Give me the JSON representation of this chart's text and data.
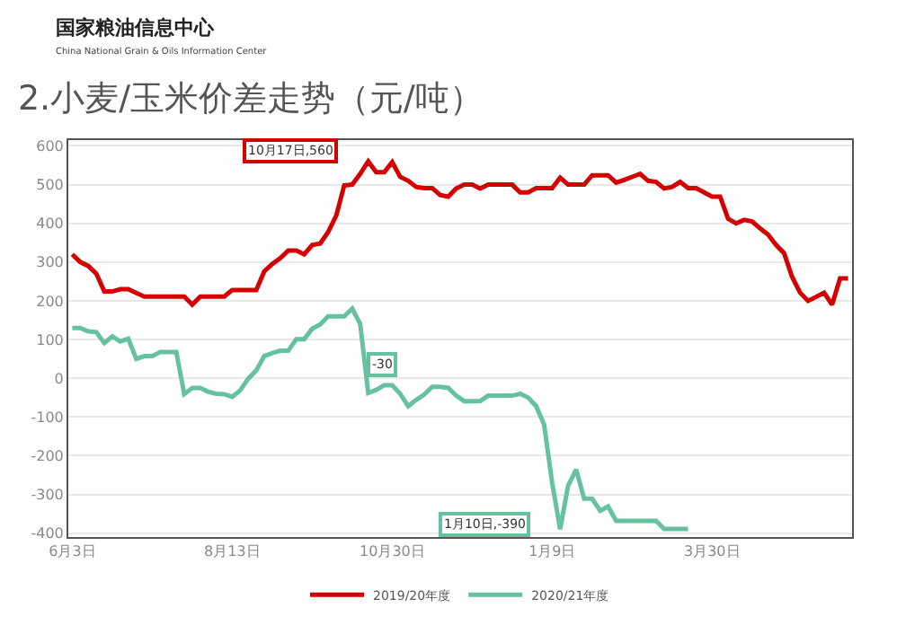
{
  "chart_data": {
    "type": "line",
    "title": "2.小麦/玉米价差走势（元/吨）",
    "categories": [
      "6月3日",
      null,
      null,
      null,
      null,
      null,
      null,
      null,
      null,
      null,
      null,
      null,
      null,
      null,
      null,
      null,
      null,
      null,
      null,
      null,
      "8月13日",
      null,
      null,
      null,
      null,
      null,
      null,
      null,
      null,
      null,
      null,
      null,
      null,
      null,
      null,
      null,
      null,
      null,
      null,
      null,
      "10月30日",
      null,
      null,
      null,
      null,
      null,
      null,
      null,
      null,
      null,
      null,
      null,
      null,
      null,
      null,
      null,
      null,
      null,
      null,
      null,
      "1月9日",
      null,
      null,
      null,
      null,
      null,
      null,
      null,
      null,
      null,
      null,
      null,
      null,
      null,
      null,
      null,
      null,
      null,
      null,
      null,
      "3月30日",
      null,
      null,
      null,
      null,
      null,
      null,
      null,
      null,
      null,
      null,
      null,
      null,
      null,
      null,
      null,
      null,
      null
    ],
    "series": [
      {
        "name": "2019/20年度",
        "color": "#d40000",
        "values": [
          320,
          300,
          290,
          270,
          224,
          224,
          230,
          230,
          220,
          211,
          211,
          211,
          211,
          211,
          211,
          190,
          211,
          211,
          211,
          211,
          228,
          228,
          228,
          228,
          276,
          295,
          310,
          330,
          330,
          320,
          344,
          348,
          378,
          420,
          498,
          500,
          528,
          560,
          532,
          532,
          558,
          520,
          510,
          494,
          491,
          491,
          473,
          469,
          490,
          500,
          500,
          490,
          500,
          500,
          500,
          500,
          480,
          480,
          491,
          491,
          491,
          518,
          500,
          500,
          500,
          524,
          524,
          524,
          505,
          512,
          520,
          528,
          510,
          507,
          490,
          494,
          507,
          491,
          491,
          480,
          469,
          469,
          412,
          400,
          409,
          405,
          387,
          371,
          344,
          323,
          262,
          221,
          200,
          210,
          221,
          190,
          258,
          258
        ]
      },
      {
        "name": "2020/21年度",
        "color": "#66c29e",
        "values": [
          130,
          130,
          121,
          119,
          91,
          108,
          95,
          102,
          50,
          57,
          57,
          68,
          68,
          68,
          -41,
          -25,
          -25,
          -35,
          -40,
          -41,
          -48,
          -31,
          -1,
          20,
          57,
          65,
          71,
          71,
          101,
          101,
          128,
          139,
          160,
          160,
          160,
          180,
          140,
          -38,
          -30,
          -18,
          -18,
          -40,
          -72,
          -56,
          -42,
          -22,
          -22,
          -25,
          -45,
          -59,
          -59,
          -59,
          -45,
          -45,
          -45,
          -45,
          -40,
          -50,
          -72,
          -120,
          -270,
          -390,
          -277,
          -236,
          -311,
          -311,
          -342,
          -331,
          -368,
          -368,
          -368,
          -368,
          -368,
          -368,
          -389,
          -389,
          -389,
          -389,
          null,
          null,
          null,
          null,
          null,
          null,
          null,
          null,
          null,
          null,
          null,
          null,
          null,
          null,
          null,
          null,
          null,
          null,
          null,
          null
        ]
      }
    ],
    "ylim": [
      -410,
      615
    ],
    "yticks": [
      -400,
      -300,
      -200,
      -100,
      0,
      100,
      200,
      300,
      400,
      500,
      600
    ],
    "grid": "y",
    "legend": "bottom",
    "line_style": "solid",
    "marker": "none",
    "annotations": [
      "国家粮油信息中心",
      "China National Grain & Oils Information Center",
      "10月17日,560",
      "-30",
      "1月10日,-390"
    ]
  }
}
